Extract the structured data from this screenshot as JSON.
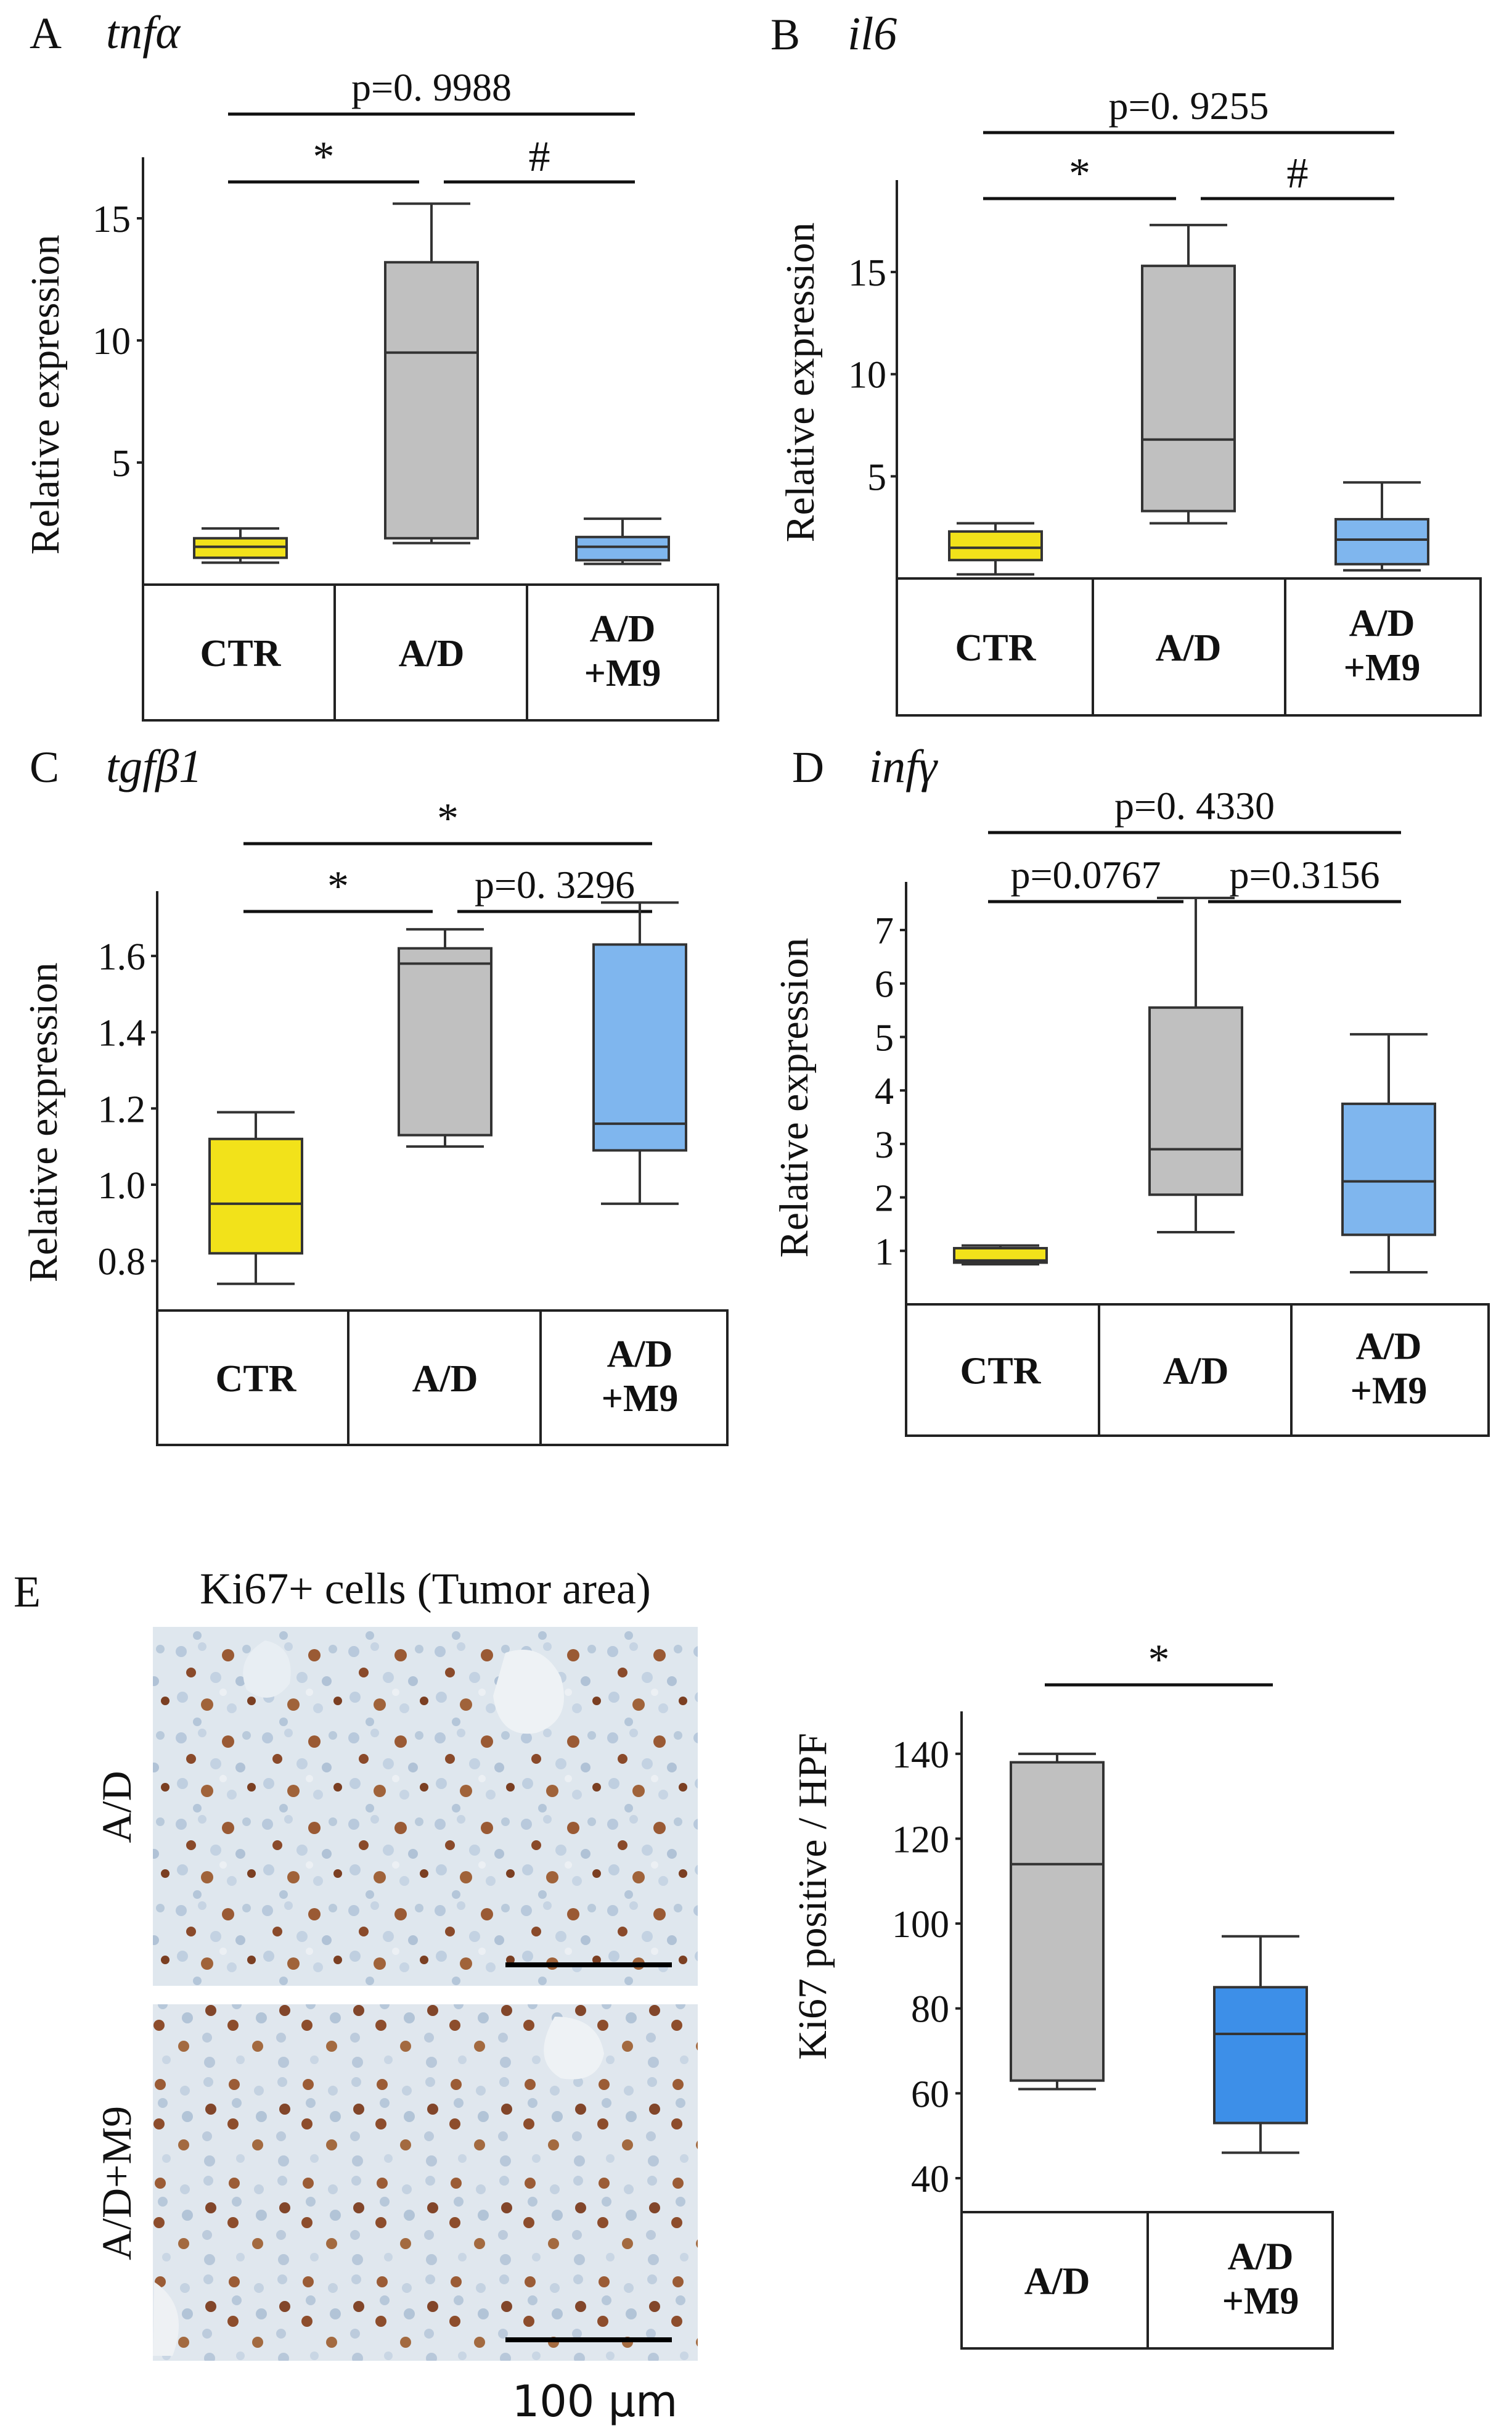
{
  "colors": {
    "ctr": "#f2e21a",
    "ad": "#c0c0c0",
    "m9_light": "#7fb6ee",
    "m9_dark": "#3d8fe8"
  },
  "chart_data": [
    {
      "panel": "A",
      "gene": "tnfα",
      "type": "box",
      "ylabel": "Relative expression",
      "ylim": [
        0,
        17.5
      ],
      "yticks": [
        5,
        10,
        15
      ],
      "groups": [
        [
          "CTR"
        ],
        [
          "A/D"
        ],
        [
          "A/D",
          "+M9"
        ]
      ],
      "boxes": [
        {
          "group": "CTR",
          "color": "ctr",
          "whisker_low": 0.9,
          "q1": 1.1,
          "median": 1.55,
          "q3": 1.9,
          "whisker_high": 2.3
        },
        {
          "group": "A/D",
          "color": "ad",
          "whisker_low": 1.7,
          "q1": 1.9,
          "median": 9.5,
          "q3": 13.2,
          "whisker_high": 15.6
        },
        {
          "group": "A/D+M9",
          "color": "m9_light",
          "whisker_low": 0.85,
          "q1": 1.0,
          "median": 1.55,
          "q3": 1.95,
          "whisker_high": 2.7
        }
      ],
      "annotations": [
        {
          "from": 0,
          "to": 2,
          "level": 2,
          "text": "p=0. 9988"
        },
        {
          "from": 0,
          "to": 1,
          "level": 1,
          "text": "*"
        },
        {
          "from": 1,
          "to": 2,
          "level": 1,
          "text": "#"
        }
      ]
    },
    {
      "panel": "B",
      "gene": "il6",
      "type": "box",
      "ylabel": "Relative expression",
      "ylim": [
        0,
        19.5
      ],
      "yticks": [
        5,
        10,
        15
      ],
      "groups": [
        [
          "CTR"
        ],
        [
          "A/D"
        ],
        [
          "A/D",
          "+M9"
        ]
      ],
      "boxes": [
        {
          "group": "CTR",
          "color": "ctr",
          "whisker_low": 0.2,
          "q1": 0.9,
          "median": 1.5,
          "q3": 2.3,
          "whisker_high": 2.7
        },
        {
          "group": "A/D",
          "color": "ad",
          "whisker_low": 2.7,
          "q1": 3.3,
          "median": 6.8,
          "q3": 15.3,
          "whisker_high": 17.3
        },
        {
          "group": "A/D+M9",
          "color": "m9_light",
          "whisker_low": 0.4,
          "q1": 0.7,
          "median": 1.9,
          "q3": 2.9,
          "whisker_high": 4.7
        }
      ],
      "annotations": [
        {
          "from": 0,
          "to": 2,
          "level": 2,
          "text": "p=0. 9255"
        },
        {
          "from": 0,
          "to": 1,
          "level": 1,
          "text": "*"
        },
        {
          "from": 1,
          "to": 2,
          "level": 1,
          "text": "#"
        }
      ]
    },
    {
      "panel": "C",
      "gene": "tgfβ1",
      "type": "box",
      "ylabel": "Relative expression",
      "ylim": [
        0.67,
        1.77
      ],
      "yticks": [
        0.8,
        1.0,
        1.2,
        1.4,
        1.6
      ],
      "ytick_labels": [
        "0.8",
        "1.0",
        "1.2",
        "1.4",
        "1.6"
      ],
      "groups": [
        [
          "CTR"
        ],
        [
          "A/D"
        ],
        [
          "A/D",
          "+M9"
        ]
      ],
      "boxes": [
        {
          "group": "CTR",
          "color": "ctr",
          "whisker_low": 0.74,
          "q1": 0.82,
          "median": 0.95,
          "q3": 1.12,
          "whisker_high": 1.19
        },
        {
          "group": "A/D",
          "color": "ad",
          "whisker_low": 1.1,
          "q1": 1.13,
          "median": 1.58,
          "q3": 1.62,
          "whisker_high": 1.67
        },
        {
          "group": "A/D+M9",
          "color": "m9_light",
          "whisker_low": 0.95,
          "q1": 1.09,
          "median": 1.16,
          "q3": 1.63,
          "whisker_high": 1.74
        }
      ],
      "annotations": [
        {
          "from": 0,
          "to": 2,
          "level": 2,
          "text": "*"
        },
        {
          "from": 0,
          "to": 1,
          "level": 1,
          "text": "*"
        },
        {
          "from": 1,
          "to": 2,
          "level": 1,
          "text": "p=0. 3296"
        }
      ]
    },
    {
      "panel": "D",
      "gene": "infγ",
      "type": "box",
      "ylabel": "Relative expression",
      "ylim": [
        0,
        7.9
      ],
      "yticks": [
        1,
        2,
        3,
        4,
        5,
        6,
        7
      ],
      "groups": [
        [
          "CTR"
        ],
        [
          "A/D"
        ],
        [
          "A/D",
          "+M9"
        ]
      ],
      "boxes": [
        {
          "group": "CTR",
          "color": "ctr",
          "whisker_low": 0.75,
          "q1": 0.78,
          "median": 0.82,
          "q3": 1.05,
          "whisker_high": 1.1
        },
        {
          "group": "A/D",
          "color": "ad",
          "whisker_low": 1.35,
          "q1": 2.05,
          "median": 2.9,
          "q3": 5.55,
          "whisker_high": 7.6
        },
        {
          "group": "A/D+M9",
          "color": "m9_light",
          "whisker_low": 0.6,
          "q1": 1.3,
          "median": 2.3,
          "q3": 3.75,
          "whisker_high": 5.05
        }
      ],
      "annotations": [
        {
          "from": 0,
          "to": 2,
          "level": 2,
          "text": "p=0. 4330"
        },
        {
          "from": 0,
          "to": 1,
          "level": 1,
          "text": "p=0.0767"
        },
        {
          "from": 1,
          "to": 2,
          "level": 1,
          "text": "p=0.3156"
        }
      ]
    },
    {
      "panel": "E",
      "gene": "",
      "type": "box",
      "ylabel": "Ki67 positive / HPF",
      "ylim": [
        32,
        150
      ],
      "yticks": [
        40,
        60,
        80,
        100,
        120,
        140
      ],
      "groups": [
        [
          "A/D"
        ],
        [
          "A/D",
          "+M9"
        ]
      ],
      "boxes": [
        {
          "group": "A/D",
          "color": "ad",
          "whisker_low": 61,
          "q1": 63,
          "median": 114,
          "q3": 138,
          "whisker_high": 140
        },
        {
          "group": "A/D+M9",
          "color": "m9_dark",
          "whisker_low": 46,
          "q1": 53,
          "median": 74,
          "q3": 85,
          "whisker_high": 97
        }
      ],
      "annotations": [
        {
          "from": 0,
          "to": 1,
          "level": 1,
          "text": "*"
        }
      ]
    }
  ],
  "panel_e": {
    "letter": "E",
    "micro_title": "Ki67+ cells (Tumor area)",
    "row_labels": [
      "A/D",
      "A/D+M9"
    ],
    "scale_label": "100 µm"
  }
}
